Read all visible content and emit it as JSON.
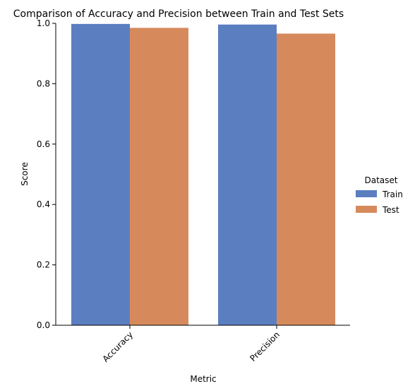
{
  "colors": {
    "train": "#5b7ec1",
    "test": "#d68a5c",
    "axis": "#000000",
    "background": "#ffffff"
  },
  "chart_data": {
    "type": "bar",
    "title": "Comparison of Accuracy and Precision between Train and Test Sets",
    "xlabel": "Metric",
    "ylabel": "Score",
    "categories": [
      "Accuracy",
      "Precision"
    ],
    "series": [
      {
        "name": "Train",
        "values": [
          0.998,
          0.996
        ]
      },
      {
        "name": "Test",
        "values": [
          0.985,
          0.966
        ]
      }
    ],
    "ylim": [
      0,
      1
    ],
    "yticks": [
      "0.0",
      "0.2",
      "0.4",
      "0.6",
      "0.8",
      "1.0"
    ],
    "grid": false,
    "legend": {
      "title": "Dataset",
      "placement": "right"
    }
  }
}
